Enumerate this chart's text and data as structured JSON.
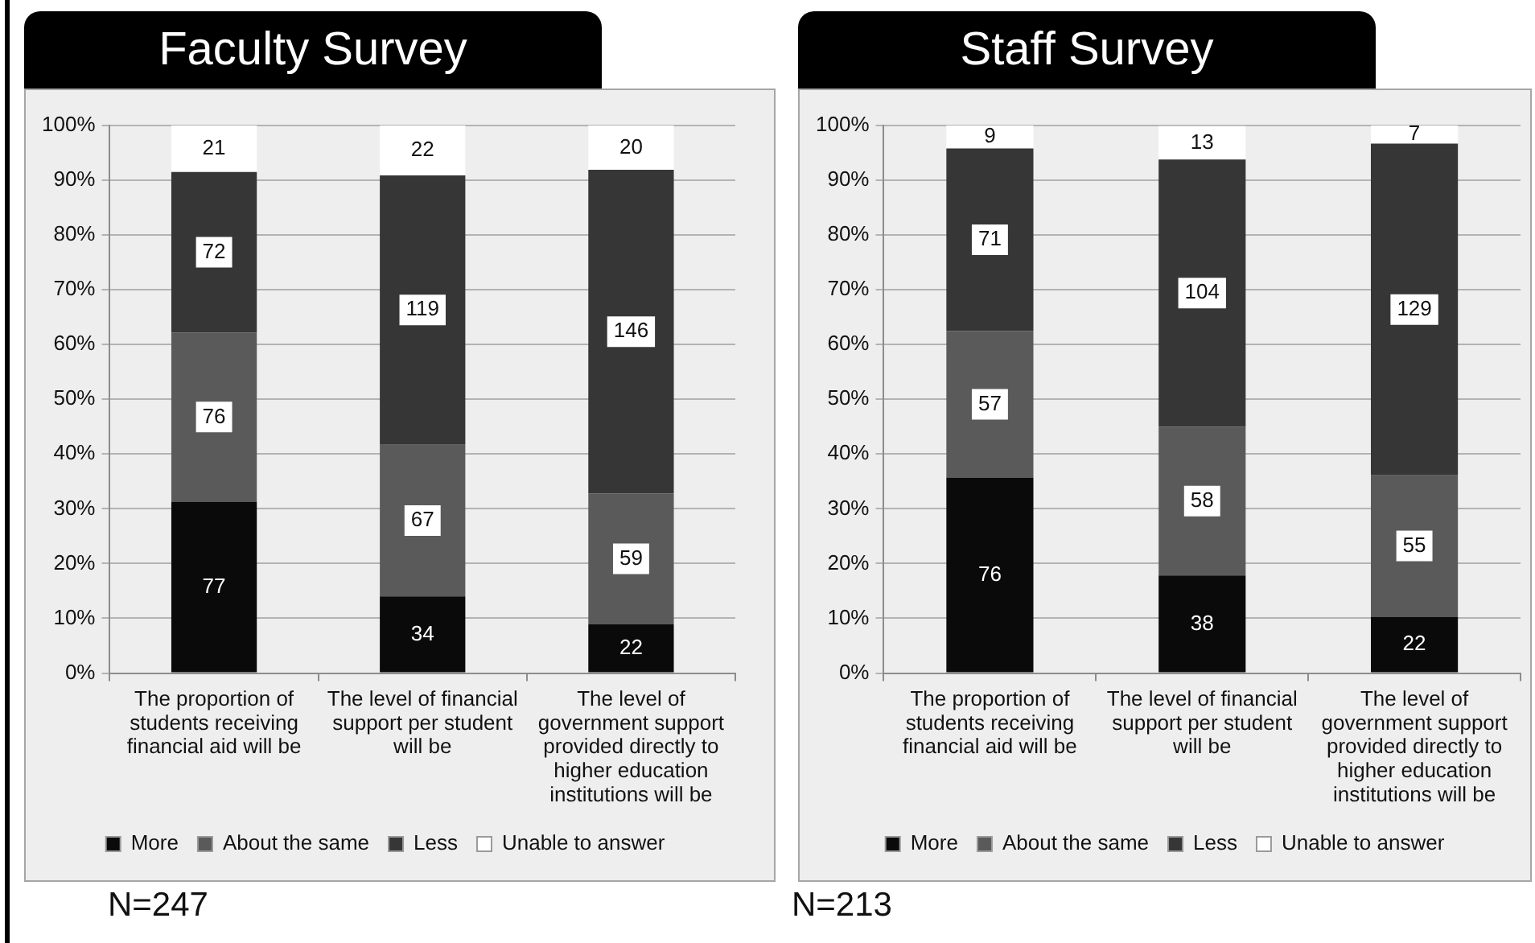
{
  "chart_data": [
    {
      "type": "bar",
      "title": "Faculty Survey",
      "stacked": true,
      "grid": "y",
      "legend": "bottom",
      "categories": [
        "The proportion of students receiving financial aid will be",
        "The level of financial support per student will be",
        "The level of government support provided directly to higher education institutions will be"
      ],
      "ylim": [
        0,
        100
      ],
      "yticks": [
        {
          "value": 0,
          "label": "0%"
        },
        {
          "value": 10,
          "label": "10%"
        },
        {
          "value": 20,
          "label": "20%"
        },
        {
          "value": 30,
          "label": "30%"
        },
        {
          "value": 40,
          "label": "40%"
        },
        {
          "value": 50,
          "label": "50%"
        },
        {
          "value": 60,
          "label": "60%"
        },
        {
          "value": 70,
          "label": "70%"
        },
        {
          "value": 80,
          "label": "80%"
        },
        {
          "value": 90,
          "label": "90%"
        },
        {
          "value": 100,
          "label": "100%"
        }
      ],
      "series": [
        {
          "name": "More",
          "color": "#0a0a0a",
          "values": [
            31.3,
            14.0,
            8.9
          ]
        },
        {
          "name": "About the same",
          "color": "#5a5a5a",
          "values": [
            30.9,
            27.7,
            23.9
          ]
        },
        {
          "name": "Less",
          "color": "#363636",
          "values": [
            29.3,
            49.2,
            59.1
          ]
        },
        {
          "name": "Unable to answer",
          "color": "#ffffff",
          "values": [
            8.5,
            9.1,
            8.1
          ]
        }
      ],
      "annotations": [
        "77",
        "76",
        "72",
        "21",
        "34",
        "67",
        "119",
        "22",
        "22",
        "59",
        "146",
        "20",
        "N=247"
      ]
    },
    {
      "type": "bar",
      "title": "Staff Survey",
      "stacked": true,
      "grid": "y",
      "legend": "bottom",
      "categories": [
        "The proportion of students receiving financial aid will be",
        "The level of financial support per student will be",
        "The level of government support provided directly to higher education institutions will be"
      ],
      "ylim": [
        0,
        100
      ],
      "yticks": [
        {
          "value": 0,
          "label": "0%"
        },
        {
          "value": 10,
          "label": "10%"
        },
        {
          "value": 20,
          "label": "20%"
        },
        {
          "value": 30,
          "label": "30%"
        },
        {
          "value": 40,
          "label": "40%"
        },
        {
          "value": 50,
          "label": "50%"
        },
        {
          "value": 60,
          "label": "60%"
        },
        {
          "value": 70,
          "label": "70%"
        },
        {
          "value": 80,
          "label": "80%"
        },
        {
          "value": 90,
          "label": "90%"
        },
        {
          "value": 100,
          "label": "100%"
        }
      ],
      "series": [
        {
          "name": "More",
          "color": "#0a0a0a",
          "values": [
            35.7,
            17.8,
            10.3
          ]
        },
        {
          "name": "About the same",
          "color": "#5a5a5a",
          "values": [
            26.8,
            27.2,
            25.8
          ]
        },
        {
          "name": "Less",
          "color": "#363636",
          "values": [
            33.3,
            48.8,
            60.6
          ]
        },
        {
          "name": "Unable to answer",
          "color": "#ffffff",
          "values": [
            4.2,
            6.1,
            3.3
          ]
        }
      ],
      "annotations": [
        "76",
        "57",
        "71",
        "9",
        "38",
        "58",
        "104",
        "13",
        "22",
        "55",
        "129",
        "7",
        "N=213"
      ]
    }
  ]
}
